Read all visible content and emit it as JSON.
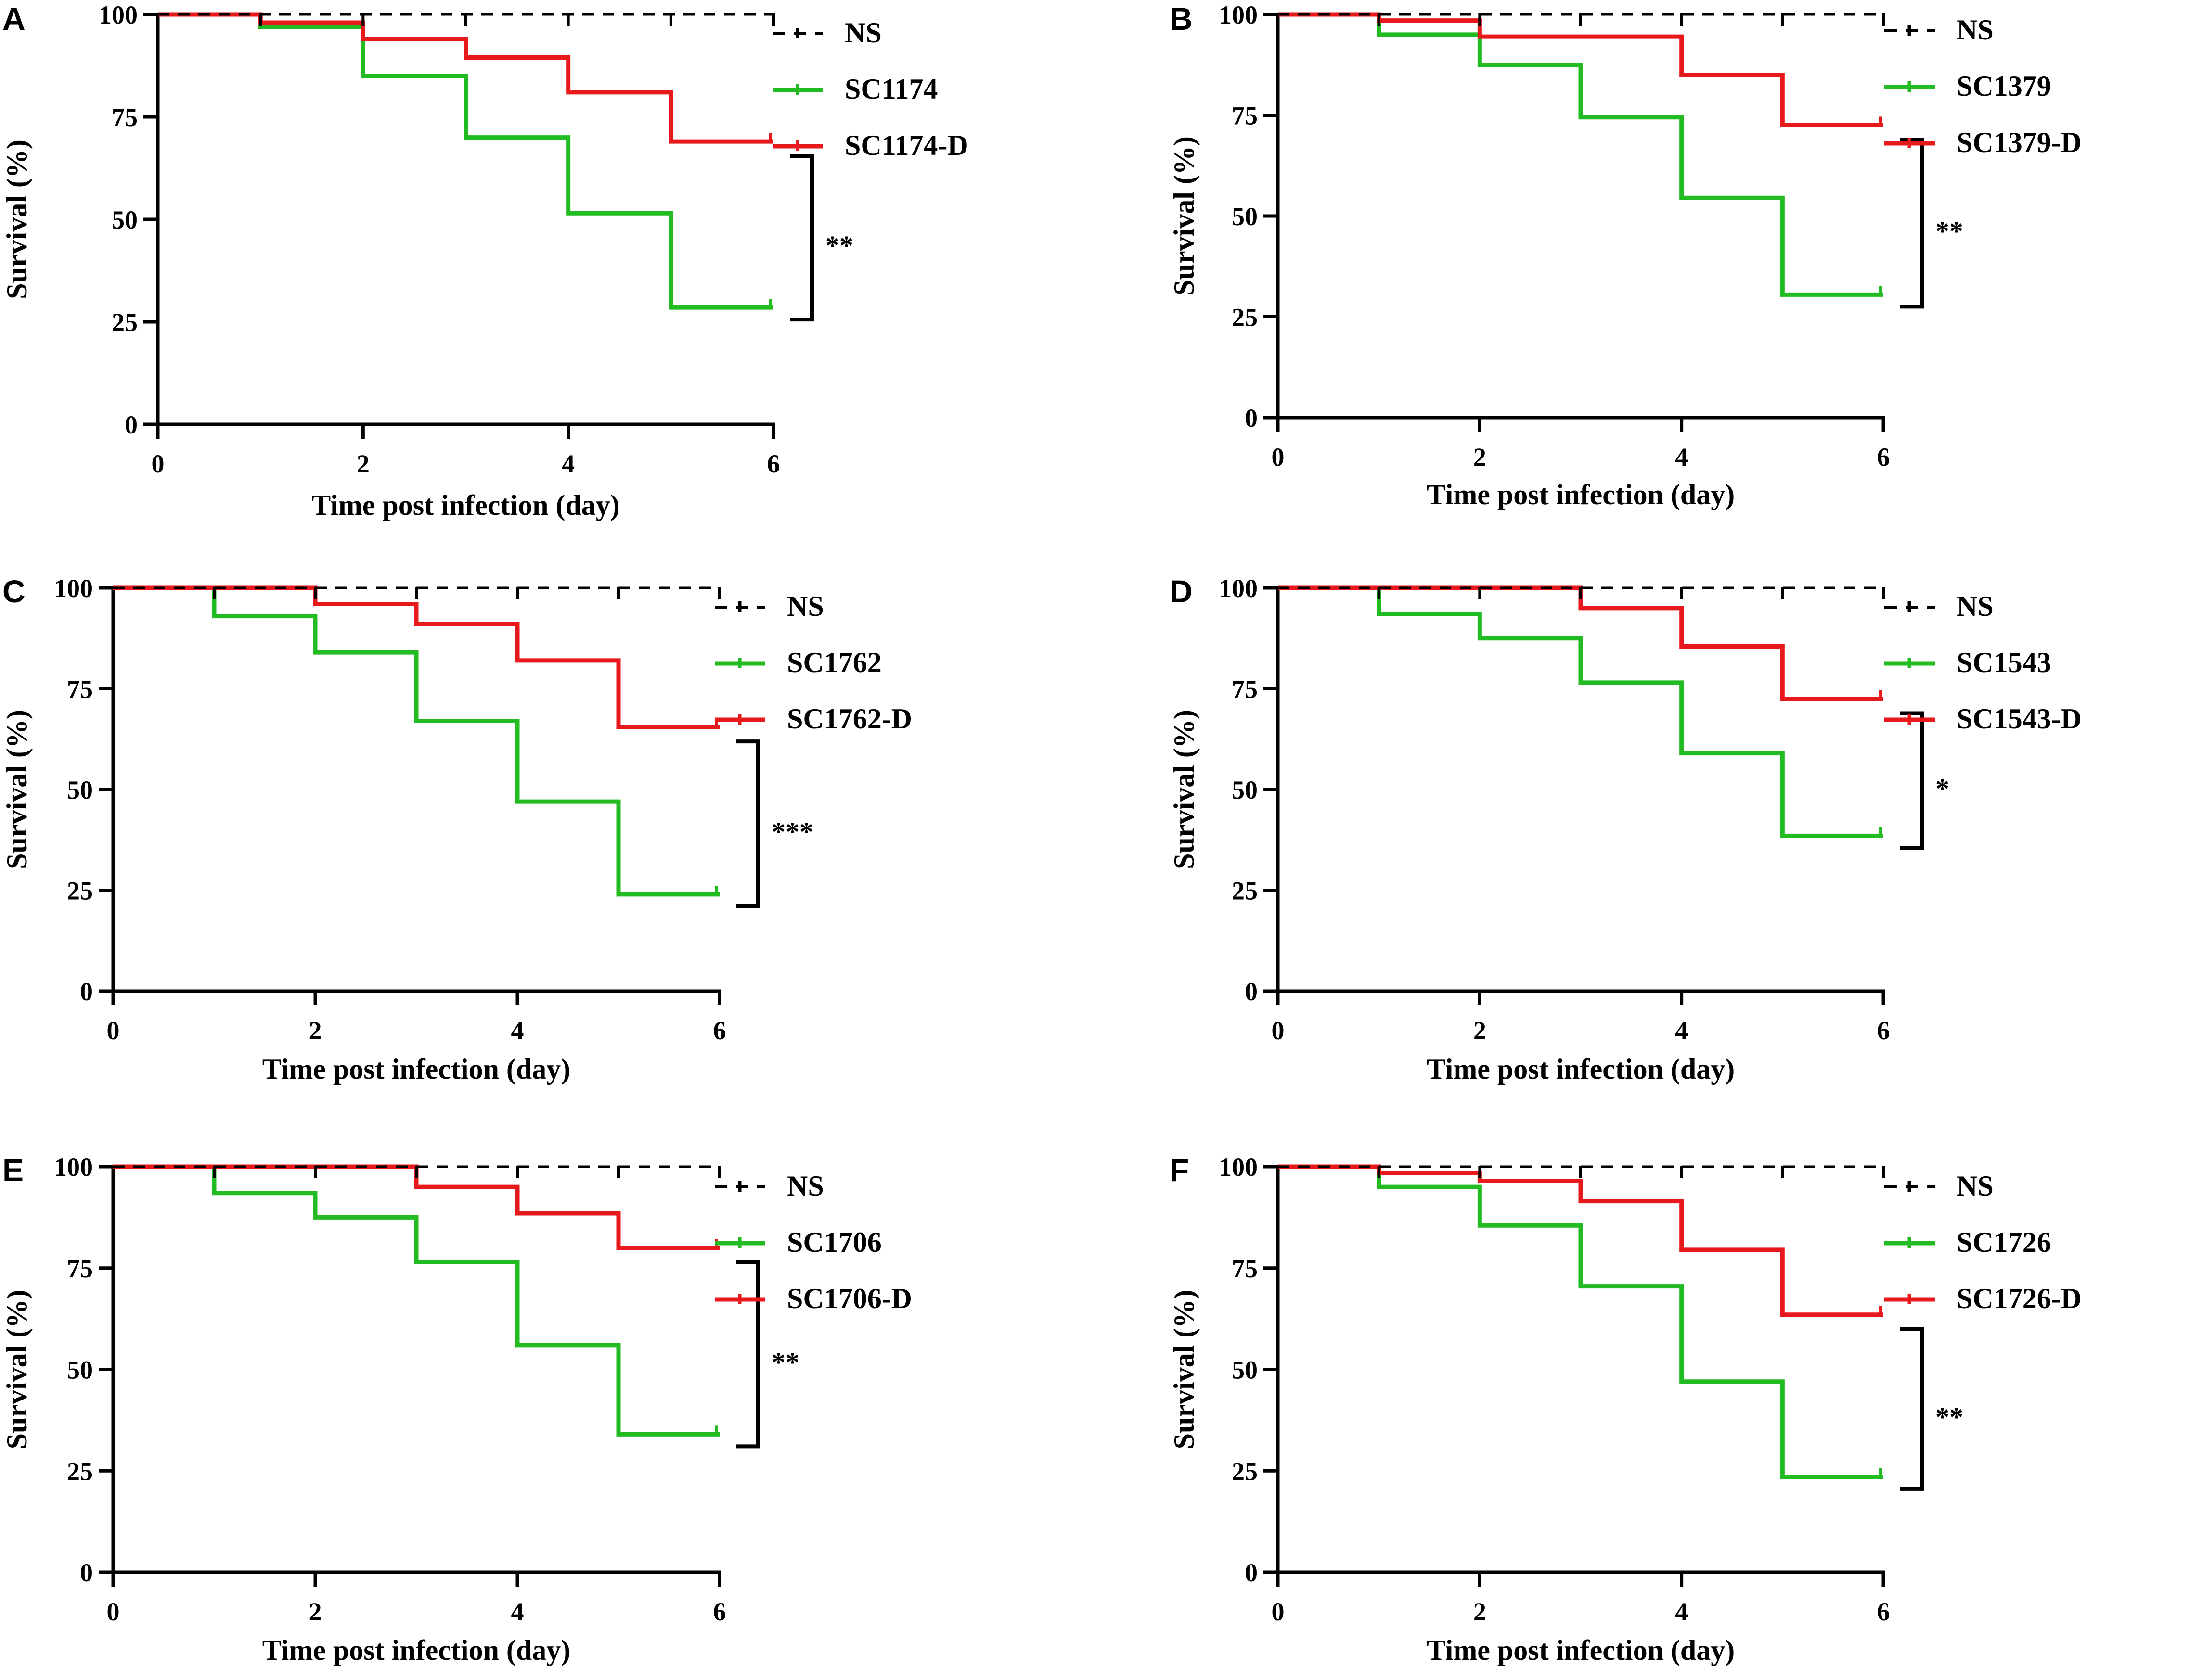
{
  "colors": {
    "ns": "#000000",
    "strain": "#22bb22",
    "strain_d": "#e8191d",
    "axis": "#000000"
  },
  "chart_data": [
    {
      "type": "line",
      "subtype": "kaplan-meier-survival",
      "panel": "A",
      "xlabel": "Time post infection (day)",
      "ylabel": "Survival (%)",
      "xlim": [
        0,
        6
      ],
      "ylim": [
        0,
        100
      ],
      "x_ticks": [
        "0",
        "2",
        "4",
        "6"
      ],
      "y_ticks": [
        "0",
        "25",
        "50",
        "75",
        "100"
      ],
      "legend_position": "top-right",
      "x": [
        0,
        1,
        2,
        3,
        4,
        5,
        6
      ],
      "series": [
        {
          "name": "NS",
          "style": "dashed",
          "values": [
            100,
            100,
            100,
            100,
            100,
            100,
            100
          ]
        },
        {
          "name": "SC1174",
          "style": "solid",
          "values": [
            100,
            97,
            85,
            70,
            51.5,
            28.5,
            28.5
          ]
        },
        {
          "name": "SC1174-D",
          "style": "solid",
          "values": [
            100,
            98,
            94,
            89.5,
            81,
            69,
            69
          ]
        }
      ],
      "significance": {
        "label": "**",
        "between": [
          "SC1174",
          "SC1174-D"
        ]
      }
    },
    {
      "type": "line",
      "subtype": "kaplan-meier-survival",
      "panel": "B",
      "xlabel": "Time post infection (day)",
      "ylabel": "Survival (%)",
      "xlim": [
        0,
        6
      ],
      "ylim": [
        0,
        100
      ],
      "x_ticks": [
        "0",
        "2",
        "4",
        "6"
      ],
      "y_ticks": [
        "0",
        "25",
        "50",
        "75",
        "100"
      ],
      "legend_position": "top-right",
      "x": [
        0,
        1,
        2,
        3,
        4,
        5,
        6
      ],
      "series": [
        {
          "name": "NS",
          "style": "dashed",
          "values": [
            100,
            100,
            100,
            100,
            100,
            100,
            100
          ]
        },
        {
          "name": "SC1379",
          "style": "solid",
          "values": [
            100,
            95,
            87.5,
            74.5,
            54.5,
            30.5,
            30.5
          ]
        },
        {
          "name": "SC1379-D",
          "style": "solid",
          "values": [
            100,
            98.5,
            94.5,
            94.5,
            85,
            72.5,
            72.5
          ]
        }
      ],
      "significance": {
        "label": "**",
        "between": [
          "SC1379",
          "SC1379-D"
        ]
      }
    },
    {
      "type": "line",
      "subtype": "kaplan-meier-survival",
      "panel": "C",
      "xlabel": "Time post infection (day)",
      "ylabel": "Survival (%)",
      "xlim": [
        0,
        6
      ],
      "ylim": [
        0,
        100
      ],
      "x_ticks": [
        "0",
        "2",
        "4",
        "6"
      ],
      "y_ticks": [
        "0",
        "25",
        "50",
        "75",
        "100"
      ],
      "legend_position": "top-right",
      "x": [
        0,
        1,
        2,
        3,
        4,
        5,
        6
      ],
      "series": [
        {
          "name": "NS",
          "style": "dashed",
          "values": [
            100,
            100,
            100,
            100,
            100,
            100,
            100
          ]
        },
        {
          "name": "SC1762",
          "style": "solid",
          "values": [
            100,
            93,
            84,
            67,
            47,
            24,
            24
          ]
        },
        {
          "name": "SC1762-D",
          "style": "solid",
          "values": [
            100,
            100,
            96,
            91,
            82,
            65.5,
            65.5
          ]
        }
      ],
      "significance": {
        "label": "***",
        "between": [
          "SC1762",
          "SC1762-D"
        ]
      }
    },
    {
      "type": "line",
      "subtype": "kaplan-meier-survival",
      "panel": "D",
      "xlabel": "Time post infection (day)",
      "ylabel": "Survival (%)",
      "xlim": [
        0,
        6
      ],
      "ylim": [
        0,
        100
      ],
      "x_ticks": [
        "0",
        "2",
        "4",
        "6"
      ],
      "y_ticks": [
        "0",
        "25",
        "50",
        "75",
        "100"
      ],
      "legend_position": "top-right",
      "x": [
        0,
        1,
        2,
        3,
        4,
        5,
        6
      ],
      "series": [
        {
          "name": "NS",
          "style": "dashed",
          "values": [
            100,
            100,
            100,
            100,
            100,
            100,
            100
          ]
        },
        {
          "name": "SC1543",
          "style": "solid",
          "values": [
            100,
            93.5,
            87.5,
            76.5,
            59,
            38.5,
            38.5
          ]
        },
        {
          "name": "SC1543-D",
          "style": "solid",
          "values": [
            100,
            100,
            100,
            95,
            85.5,
            72.5,
            72.5
          ]
        }
      ],
      "significance": {
        "label": "*",
        "between": [
          "SC1543",
          "SC1543-D"
        ]
      }
    },
    {
      "type": "line",
      "subtype": "kaplan-meier-survival",
      "panel": "E",
      "xlabel": "Time post infection (day)",
      "ylabel": "Survival (%)",
      "xlim": [
        0,
        6
      ],
      "ylim": [
        0,
        100
      ],
      "x_ticks": [
        "0",
        "2",
        "4",
        "6"
      ],
      "y_ticks": [
        "0",
        "25",
        "50",
        "75",
        "100"
      ],
      "legend_position": "top-right",
      "x": [
        0,
        1,
        2,
        3,
        4,
        5,
        6
      ],
      "series": [
        {
          "name": "NS",
          "style": "dashed",
          "values": [
            100,
            100,
            100,
            100,
            100,
            100,
            100
          ]
        },
        {
          "name": "SC1706",
          "style": "solid",
          "values": [
            100,
            93.5,
            87.5,
            76.5,
            56,
            34,
            34
          ]
        },
        {
          "name": "SC1706-D",
          "style": "solid",
          "values": [
            100,
            100,
            100,
            95,
            88.5,
            80,
            80
          ]
        }
      ],
      "significance": {
        "label": "**",
        "between": [
          "SC1706",
          "SC1706-D"
        ]
      }
    },
    {
      "type": "line",
      "subtype": "kaplan-meier-survival",
      "panel": "F",
      "xlabel": "Time post infection (day)",
      "ylabel": "Survival (%)",
      "xlim": [
        0,
        6
      ],
      "ylim": [
        0,
        100
      ],
      "x_ticks": [
        "0",
        "2",
        "4",
        "6"
      ],
      "y_ticks": [
        "0",
        "25",
        "50",
        "75",
        "100"
      ],
      "legend_position": "top-right",
      "x": [
        0,
        1,
        2,
        3,
        4,
        5,
        6
      ],
      "series": [
        {
          "name": "NS",
          "style": "dashed",
          "values": [
            100,
            100,
            100,
            100,
            100,
            100,
            100
          ]
        },
        {
          "name": "SC1726",
          "style": "solid",
          "values": [
            100,
            95,
            85.5,
            70.5,
            47,
            23.5,
            23.5
          ]
        },
        {
          "name": "SC1726-D",
          "style": "solid",
          "values": [
            100,
            98.5,
            96.5,
            91.5,
            79.5,
            63.5,
            63.5
          ]
        }
      ],
      "significance": {
        "label": "**",
        "between": [
          "SC1726",
          "SC1726-D"
        ]
      }
    }
  ]
}
